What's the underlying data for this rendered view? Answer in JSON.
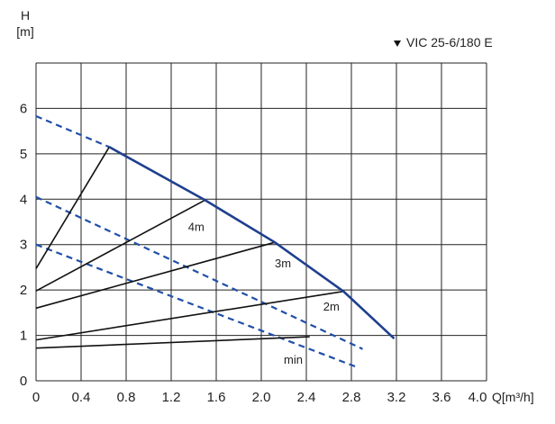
{
  "chart_data": {
    "type": "line",
    "title": "VIC 25-6/180 E",
    "xlabel": "Q[m³/h]",
    "ylabel_top": "H",
    "ylabel_unit": "[m]",
    "xlim": [
      0,
      4.0
    ],
    "ylim": [
      0,
      7
    ],
    "x_ticks": [
      "0",
      "0.4",
      "0.8",
      "1.2",
      "1.6",
      "2.0",
      "2.4",
      "2.8",
      "3.2",
      "3.6",
      "4.0"
    ],
    "y_ticks": [
      "0",
      "1",
      "2",
      "3",
      "4",
      "5",
      "6"
    ],
    "grid": true,
    "legend": "top-right",
    "max_curve": {
      "color": "#1f3f8f",
      "points": [
        [
          0.65,
          5.15
        ],
        [
          1.5,
          3.98
        ],
        [
          2.12,
          3.05
        ],
        [
          2.73,
          1.97
        ],
        [
          3.18,
          0.93
        ]
      ]
    },
    "dashed_lines": {
      "color": "#1f4fa8",
      "lines": [
        [
          [
            0,
            5.83
          ],
          [
            0.65,
            5.15
          ]
        ],
        [
          [
            0,
            4.05
          ],
          [
            2.9,
            0.7
          ]
        ],
        [
          [
            0,
            3.0
          ],
          [
            2.85,
            0.3
          ]
        ]
      ]
    },
    "black_lines": {
      "color": "#111111",
      "lines": [
        [
          [
            0,
            2.47
          ],
          [
            0.65,
            5.15
          ]
        ],
        [
          [
            0,
            1.98
          ],
          [
            1.5,
            3.98
          ]
        ],
        [
          [
            0,
            1.6
          ],
          [
            2.12,
            3.05
          ]
        ],
        [
          [
            0,
            0.9
          ],
          [
            2.73,
            1.97
          ]
        ],
        [
          [
            0,
            0.72
          ],
          [
            2.43,
            0.97
          ]
        ]
      ]
    },
    "curve_labels": [
      {
        "text": "4m",
        "x": 1.35,
        "y": 3.3
      },
      {
        "text": "3m",
        "x": 2.12,
        "y": 2.5
      },
      {
        "text": "2m",
        "x": 2.55,
        "y": 1.55
      },
      {
        "text": "min",
        "x": 2.2,
        "y": 0.38
      }
    ]
  }
}
